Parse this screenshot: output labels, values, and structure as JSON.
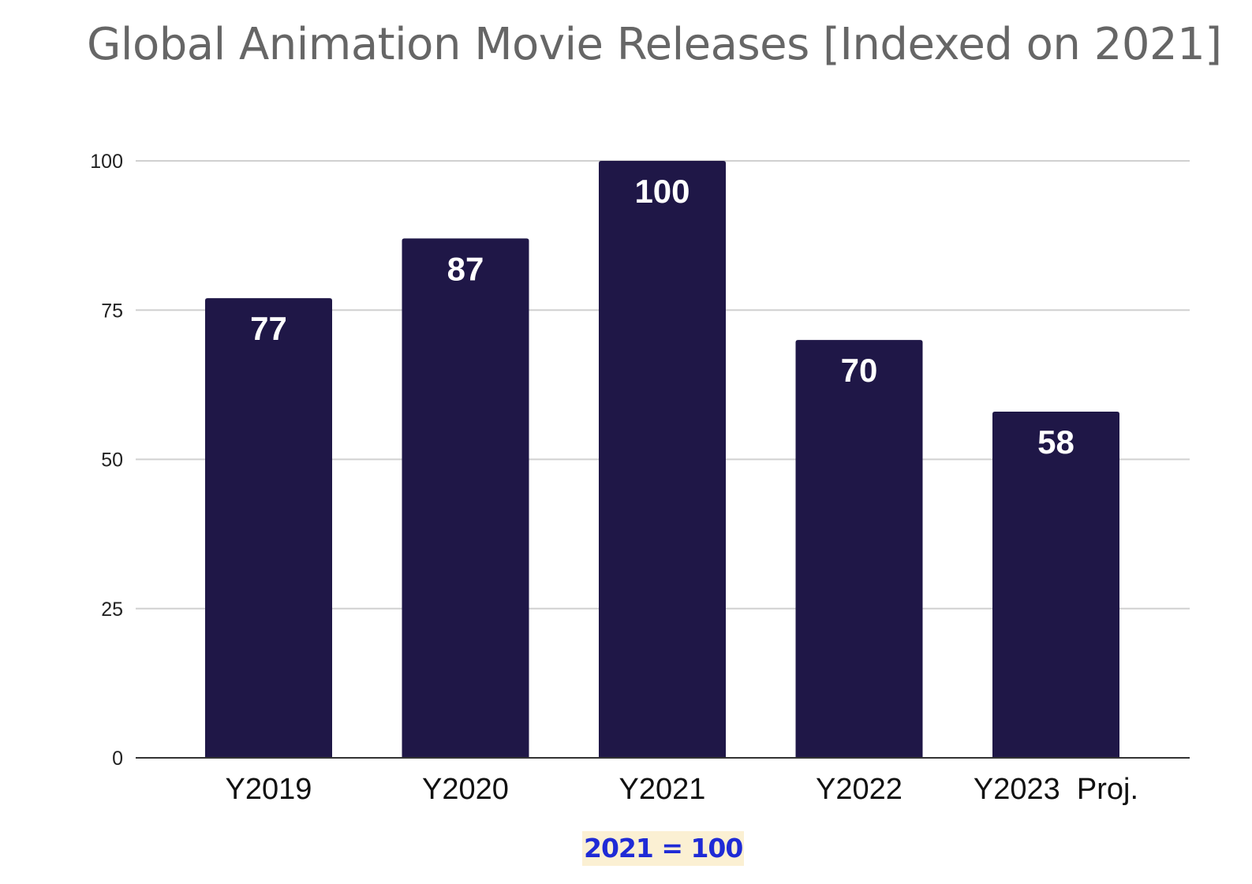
{
  "chart_data": {
    "type": "bar",
    "title": "Global Animation Movie Releases [Indexed on 2021]",
    "categories": [
      "Y2019",
      "Y2020",
      "Y2021",
      "Y2022",
      "Y2023  Proj."
    ],
    "values": [
      77,
      87,
      100,
      70,
      58
    ],
    "data_labels": [
      "77",
      "87",
      "100",
      "70",
      "58"
    ],
    "yticks": [
      "0",
      "25",
      "50",
      "75",
      "100"
    ],
    "ylim": [
      0,
      100
    ],
    "xlabel": "",
    "ylabel": "",
    "grid": true,
    "bar_color": "#1f1747",
    "note": "2021 = 100"
  }
}
